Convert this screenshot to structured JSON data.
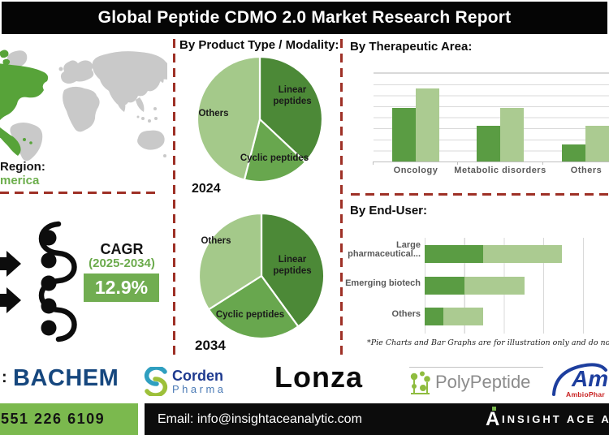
{
  "title": "Global Peptide CDMO 2.0 Market Research Report",
  "left": {
    "region_label": "Region:",
    "region_value": "merica",
    "cagr_label": "CAGR",
    "cagr_period": "(2025-2034)",
    "cagr_value": "12.9%"
  },
  "sections": {
    "product_type_heading": "By Product Type / Modality:",
    "therapeutic_heading": "By Therapeutic Area:",
    "enduser_heading": "By End-User:",
    "footnote": "*Pie Charts and Bar Graphs are for illustration only and do not represent actu"
  },
  "chart_data": [
    {
      "id": "product-modality-2024",
      "type": "pie",
      "title": "2024",
      "slices": [
        {
          "label": "Linear peptides",
          "value": 37
        },
        {
          "label": "Cyclic peptides",
          "value": 17
        },
        {
          "label": "Others",
          "value": 46
        }
      ],
      "colors": [
        "#4c8937",
        "#68a74e",
        "#a4c98a"
      ],
      "legend_position": "inside"
    },
    {
      "id": "product-modality-2034",
      "type": "pie",
      "title": "2034",
      "slices": [
        {
          "label": "Linear peptides",
          "value": 40
        },
        {
          "label": "Cyclic peptides",
          "value": 26
        },
        {
          "label": "Others",
          "value": 34
        }
      ],
      "colors": [
        "#4c8937",
        "#68a74e",
        "#a4c98a"
      ],
      "legend_position": "inside"
    },
    {
      "id": "therapeutic-area",
      "type": "bar",
      "title": "By Therapeutic Area:",
      "categories": [
        "Oncology",
        "Metabolic disorders",
        "Others"
      ],
      "series": [
        {
          "name": "series-dark-green",
          "values": [
            61,
            40,
            19
          ]
        },
        {
          "name": "series-light-green",
          "values": [
            83,
            61,
            40
          ]
        }
      ],
      "ylim": [
        0,
        100
      ],
      "grid": true,
      "legend": false,
      "colors": [
        "#5a9c43",
        "#abcb91"
      ]
    },
    {
      "id": "end-user",
      "type": "bar",
      "orientation": "horizontal",
      "stacked": true,
      "title": "By End-User:",
      "categories": [
        "Large pharmaceutical...",
        "Emerging biotech",
        "Others"
      ],
      "series": [
        {
          "name": "series-dark-green",
          "values": [
            37,
            25,
            12
          ]
        },
        {
          "name": "series-light-green",
          "values": [
            50,
            38,
            25
          ]
        }
      ],
      "xlim": [
        0,
        100
      ],
      "grid": true,
      "legend": false,
      "colors": [
        "#5a9c43",
        "#abcb91"
      ]
    }
  ],
  "logos": {
    "players_colon": ":",
    "bachem": "BACHEM",
    "corden_line1": "Corden",
    "corden_line2": "Pharma",
    "lonza": "Lonza",
    "polypeptide": "PolyPeptide",
    "ambio_main": "Am",
    "ambio_sub": "AmbioPhar"
  },
  "footer": {
    "phone": "551 226 6109",
    "email": "Email: info@insightaceanalytic.com",
    "brand": "INSIGHT ACE A"
  },
  "colors": {
    "dashed_divider": "#9e3026",
    "map_gray": "#c9c9c9",
    "map_highlight_green": "#57a339",
    "cagr_green": "#71ad51",
    "footer_green": "#7bb94e",
    "pie_dark": "#4c8937",
    "pie_mid": "#68a74e",
    "pie_light": "#a4c98a",
    "bar_dark": "#5a9c43",
    "bar_light": "#abcb91"
  }
}
